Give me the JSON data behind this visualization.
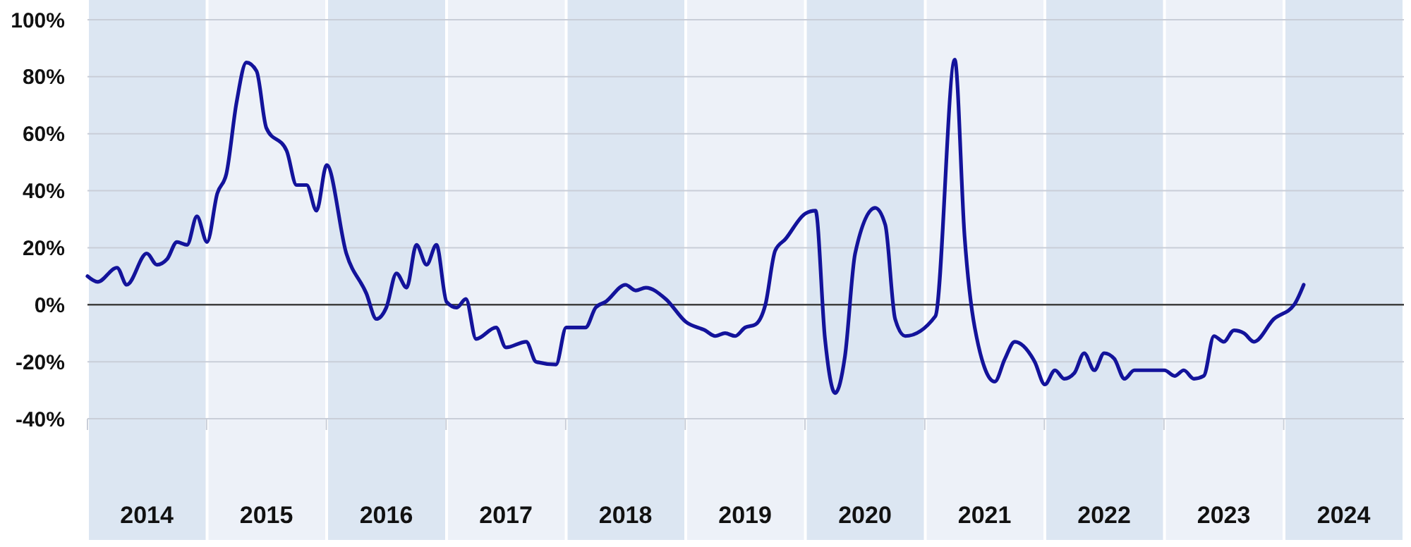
{
  "chart_data": {
    "type": "line",
    "x": [
      "2014-01",
      "2014-02",
      "2014-04",
      "2014-05",
      "2014-07",
      "2014-08",
      "2014-09",
      "2014-10",
      "2014-11",
      "2014-12",
      "2015-01",
      "2015-02",
      "2015-03",
      "2015-04",
      "2015-05",
      "2015-06",
      "2015-07",
      "2015-09",
      "2015-10",
      "2015-11",
      "2015-12",
      "2016-01",
      "2016-03",
      "2016-05",
      "2016-06",
      "2016-07",
      "2016-08",
      "2016-09",
      "2016-10",
      "2016-11",
      "2016-12",
      "2017-01",
      "2017-02",
      "2017-03",
      "2017-04",
      "2017-06",
      "2017-07",
      "2017-09",
      "2017-10",
      "2017-12",
      "2018-01",
      "2018-03",
      "2018-04",
      "2018-05",
      "2018-07",
      "2018-08",
      "2018-09",
      "2018-11",
      "2019-01",
      "2019-03",
      "2019-04",
      "2019-05",
      "2019-06",
      "2019-07",
      "2019-08",
      "2019-09",
      "2019-10",
      "2019-11",
      "2020-01",
      "2020-02",
      "2020-03",
      "2020-04",
      "2020-05",
      "2020-06",
      "2020-08",
      "2020-09",
      "2020-10",
      "2020-11",
      "2021-02",
      "2021-04",
      "2021-05",
      "2021-06",
      "2021-08",
      "2021-09",
      "2021-10",
      "2021-12",
      "2022-01",
      "2022-02",
      "2022-03",
      "2022-04",
      "2022-05",
      "2022-06",
      "2022-07",
      "2022-08",
      "2022-09",
      "2022-10",
      "2023-01",
      "2023-02",
      "2023-03",
      "2023-04",
      "2023-05",
      "2023-06",
      "2023-07",
      "2023-08",
      "2023-09",
      "2023-10",
      "2023-12",
      "2024-02",
      "2024-03"
    ],
    "series": [
      {
        "color": "#13139b",
        "values": [
          10,
          8,
          13,
          7,
          18,
          14,
          16,
          22,
          21,
          31,
          22,
          39,
          46,
          71,
          85,
          82,
          62,
          54,
          42,
          42,
          33,
          49,
          18,
          4,
          -5,
          -1,
          11,
          6,
          21,
          14,
          21,
          1,
          -1,
          2,
          -12,
          -8,
          -15,
          -13,
          -20,
          -21,
          -8,
          -8,
          -1,
          1,
          7,
          5,
          6,
          2,
          -6,
          -9,
          -11,
          -10,
          -11,
          -8,
          -7,
          0,
          19,
          23,
          32,
          33,
          -12,
          -31,
          -18,
          18,
          34,
          28,
          -5,
          -11,
          -4,
          86,
          24,
          -8,
          -27,
          -19,
          -13,
          -20,
          -28,
          -23,
          -26,
          -24,
          -17,
          -23,
          -17,
          -19,
          -26,
          -23,
          -23,
          -25,
          -23,
          -26,
          -25,
          -11,
          -13,
          -9,
          -10,
          -13,
          -5,
          0,
          7
        ]
      }
    ],
    "xlim": [
      "2014-01-01",
      "2025-01-01"
    ],
    "xticks": [
      {
        "value": "2014-07-01",
        "label": "2014"
      },
      {
        "value": "2015-07-01",
        "label": "2015"
      },
      {
        "value": "2016-07-01",
        "label": "2016"
      },
      {
        "value": "2017-07-01",
        "label": "2017"
      },
      {
        "value": "2018-07-01",
        "label": "2018"
      },
      {
        "value": "2019-07-01",
        "label": "2019"
      },
      {
        "value": "2020-07-01",
        "label": "2020"
      },
      {
        "value": "2021-07-01",
        "label": "2021"
      },
      {
        "value": "2022-07-01",
        "label": "2022"
      },
      {
        "value": "2023-07-01",
        "label": "2023"
      },
      {
        "value": "2024-07-01",
        "label": "2024"
      }
    ],
    "ylim": [
      -40,
      100
    ],
    "yticks": [
      {
        "value": -40,
        "label": "-40%"
      },
      {
        "value": -20,
        "label": "-20%"
      },
      {
        "value": 0,
        "label": "0%"
      },
      {
        "value": 20,
        "label": "20%"
      },
      {
        "value": 40,
        "label": "40%"
      },
      {
        "value": 60,
        "label": "60%"
      },
      {
        "value": 80,
        "label": "80%"
      },
      {
        "value": 100,
        "label": "100%"
      }
    ],
    "bands": [
      {
        "axis": "x",
        "from": "2014-01-01",
        "to": "2015-01-01",
        "color": "#dce6f2"
      },
      {
        "axis": "x",
        "from": "2015-01-01",
        "to": "2016-01-01",
        "color": "#edf1f8"
      },
      {
        "axis": "x",
        "from": "2016-01-01",
        "to": "2017-01-01",
        "color": "#dce6f2"
      },
      {
        "axis": "x",
        "from": "2017-01-01",
        "to": "2018-01-01",
        "color": "#edf1f8"
      },
      {
        "axis": "x",
        "from": "2018-01-01",
        "to": "2019-01-01",
        "color": "#dce6f2"
      },
      {
        "axis": "x",
        "from": "2019-01-01",
        "to": "2020-01-01",
        "color": "#edf1f8"
      },
      {
        "axis": "x",
        "from": "2020-01-01",
        "to": "2021-01-01",
        "color": "#dce6f2"
      },
      {
        "axis": "x",
        "from": "2021-01-01",
        "to": "2022-01-01",
        "color": "#edf1f8"
      },
      {
        "axis": "x",
        "from": "2022-01-01",
        "to": "2023-01-01",
        "color": "#dce6f2"
      },
      {
        "axis": "x",
        "from": "2023-01-01",
        "to": "2024-01-01",
        "color": "#edf1f8"
      },
      {
        "axis": "x",
        "from": "2024-01-01",
        "to": "2025-01-01",
        "color": "#dce6f2"
      }
    ],
    "grid": true,
    "marker": "none",
    "line_style": "solid"
  }
}
